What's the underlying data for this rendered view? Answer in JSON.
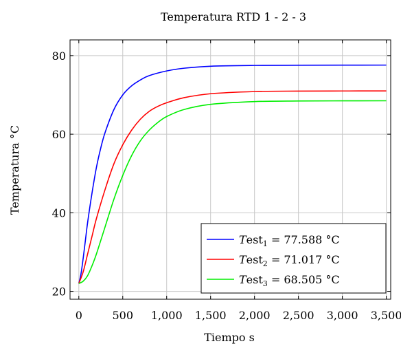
{
  "chart_data": {
    "type": "line",
    "title": "Temperatura RTD 1 - 2 - 3",
    "xlabel": "Tiempo s",
    "ylabel": "Temperatura °C",
    "xlim": [
      -100,
      3550
    ],
    "ylim": [
      18,
      84
    ],
    "x_ticks": [
      0,
      500,
      1000,
      1500,
      2000,
      2500,
      3000,
      3500
    ],
    "x_tick_labels": [
      "0",
      "500",
      "1,000",
      "1,500",
      "2,000",
      "2,500",
      "3,000",
      "3,500"
    ],
    "y_ticks": [
      20,
      40,
      60,
      80
    ],
    "y_tick_labels": [
      "20",
      "40",
      "60",
      "80"
    ],
    "grid": true,
    "legend_position": "bottom-right",
    "series": [
      {
        "name": "Test1 = 77.588 °C",
        "legend_base": "T",
        "legend_sub_prefix": "est",
        "legend_sub": "1",
        "legend_value": " = 77.588 °C",
        "color": "#0000ff",
        "x": [
          0,
          25,
          50,
          75,
          100,
          150,
          200,
          250,
          300,
          400,
          500,
          600,
          700,
          800,
          1000,
          1200,
          1500,
          2000,
          2500,
          3000,
          3500
        ],
        "y": [
          22.0,
          24.5,
          28.5,
          33.0,
          37.5,
          45.0,
          51.5,
          56.5,
          60.5,
          66.3,
          70.0,
          72.3,
          73.8,
          74.9,
          76.1,
          76.8,
          77.3,
          77.5,
          77.55,
          77.58,
          77.588
        ]
      },
      {
        "name": "Test2 = 71.017 °C",
        "legend_base": "T",
        "legend_sub_prefix": "est",
        "legend_sub": "2",
        "legend_value": " = 71.017 °C",
        "color": "#ff0000",
        "x": [
          0,
          50,
          100,
          150,
          200,
          300,
          400,
          500,
          600,
          700,
          800,
          900,
          1000,
          1200,
          1500,
          2000,
          2500,
          3000,
          3500
        ],
        "y": [
          22.0,
          25.0,
          29.5,
          34.0,
          38.5,
          46.0,
          52.5,
          57.3,
          61.0,
          63.8,
          65.8,
          67.1,
          68.0,
          69.3,
          70.3,
          70.85,
          70.97,
          71.0,
          71.017
        ]
      },
      {
        "name": "Test3 = 68.505 °C",
        "legend_base": "T",
        "legend_sub_prefix": "est",
        "legend_sub": "3",
        "legend_value": " = 68.505 °C",
        "color": "#00ee00",
        "x": [
          0,
          50,
          100,
          150,
          200,
          300,
          400,
          500,
          600,
          700,
          800,
          900,
          1000,
          1200,
          1500,
          2000,
          2500,
          3000,
          3500
        ],
        "y": [
          22.0,
          22.6,
          24.0,
          26.5,
          29.5,
          36.5,
          43.5,
          49.5,
          54.5,
          58.3,
          61.0,
          63.0,
          64.5,
          66.3,
          67.6,
          68.3,
          68.45,
          68.49,
          68.505
        ]
      }
    ]
  }
}
